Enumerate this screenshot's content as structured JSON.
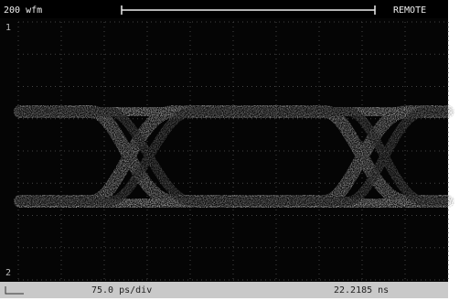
{
  "header": {
    "acquisition": "200 wfm",
    "mode": "REMOTE"
  },
  "screen": {
    "marker_top": "1",
    "marker_bottom": "2"
  },
  "footer": {
    "timebase": "75.0 ps/div",
    "position": "22.2185 ns"
  }
}
